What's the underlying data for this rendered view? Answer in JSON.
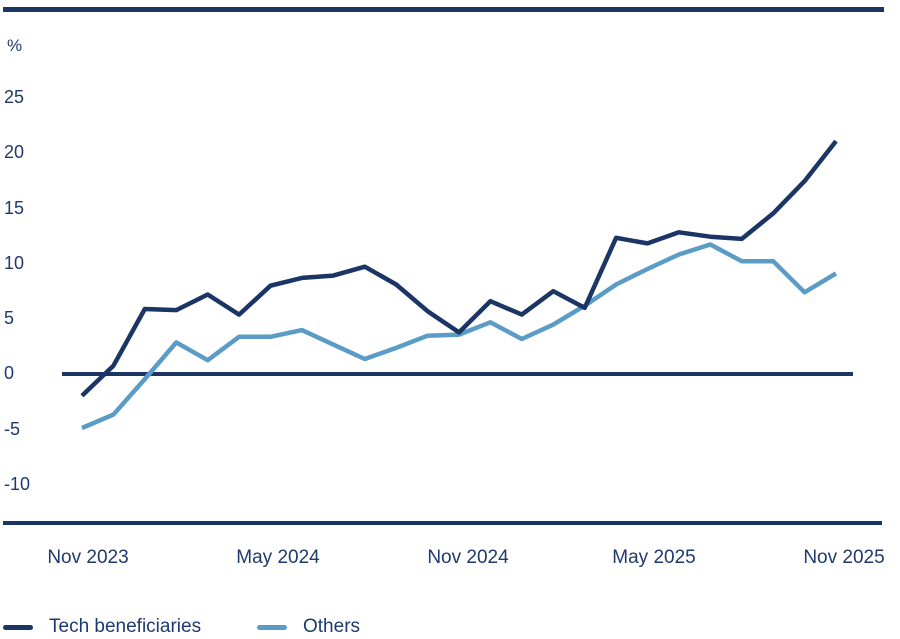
{
  "chart_data": {
    "type": "line",
    "unit_label": "%",
    "categories": [
      "Nov 2023",
      "Dec 2023",
      "Jan 2024",
      "Feb 2024",
      "Mar 2024",
      "Apr 2024",
      "May 2024",
      "Jun 2024",
      "Jul 2024",
      "Aug 2024",
      "Sep 2024",
      "Oct 2024",
      "Nov 2024",
      "Dec 2024",
      "Jan 2025",
      "Feb 2025",
      "Mar 2025",
      "Apr 2025",
      "May 2025",
      "Jun 2025",
      "Jul 2025",
      "Aug 2025",
      "Sep 2025",
      "Oct 2025",
      "Nov 2025"
    ],
    "series": [
      {
        "name": "Tech beneficiaries",
        "color": "#1b3564",
        "values": [
          -2.0,
          0.7,
          5.8,
          5.7,
          7.1,
          5.3,
          7.9,
          8.6,
          8.8,
          9.6,
          8.0,
          5.6,
          3.7,
          6.5,
          5.3,
          7.4,
          5.9,
          12.2,
          11.7,
          12.7,
          12.3,
          12.1,
          14.4,
          17.3,
          20.9
        ]
      },
      {
        "name": "Others",
        "color": "#5a9cc5",
        "values": [
          -4.9,
          -3.7,
          -0.5,
          2.8,
          1.2,
          3.3,
          3.3,
          3.9,
          2.6,
          1.3,
          2.3,
          3.4,
          3.5,
          4.6,
          3.1,
          4.4,
          6.1,
          8.0,
          9.4,
          10.7,
          11.6,
          10.1,
          10.1,
          7.3,
          9.0
        ]
      }
    ],
    "x_tick_labels": [
      "Nov 2023",
      "May 2024",
      "Nov 2024",
      "May 2025",
      "Nov 2025"
    ],
    "y_tick_labels": [
      "25",
      "20",
      "15",
      "10",
      "5",
      "0",
      "-5",
      "-10"
    ],
    "y_ticks": [
      25,
      20,
      15,
      10,
      5,
      0,
      -5,
      -10
    ],
    "ylim": [
      -12.5,
      27.5
    ],
    "grid": "none",
    "baseline": "zero line only",
    "legend_position": "bottom-left"
  },
  "colors": {
    "navy": "#1b3564",
    "light_blue": "#5a9cc5",
    "text": "#1e3a6d",
    "background": "#ffffff"
  }
}
